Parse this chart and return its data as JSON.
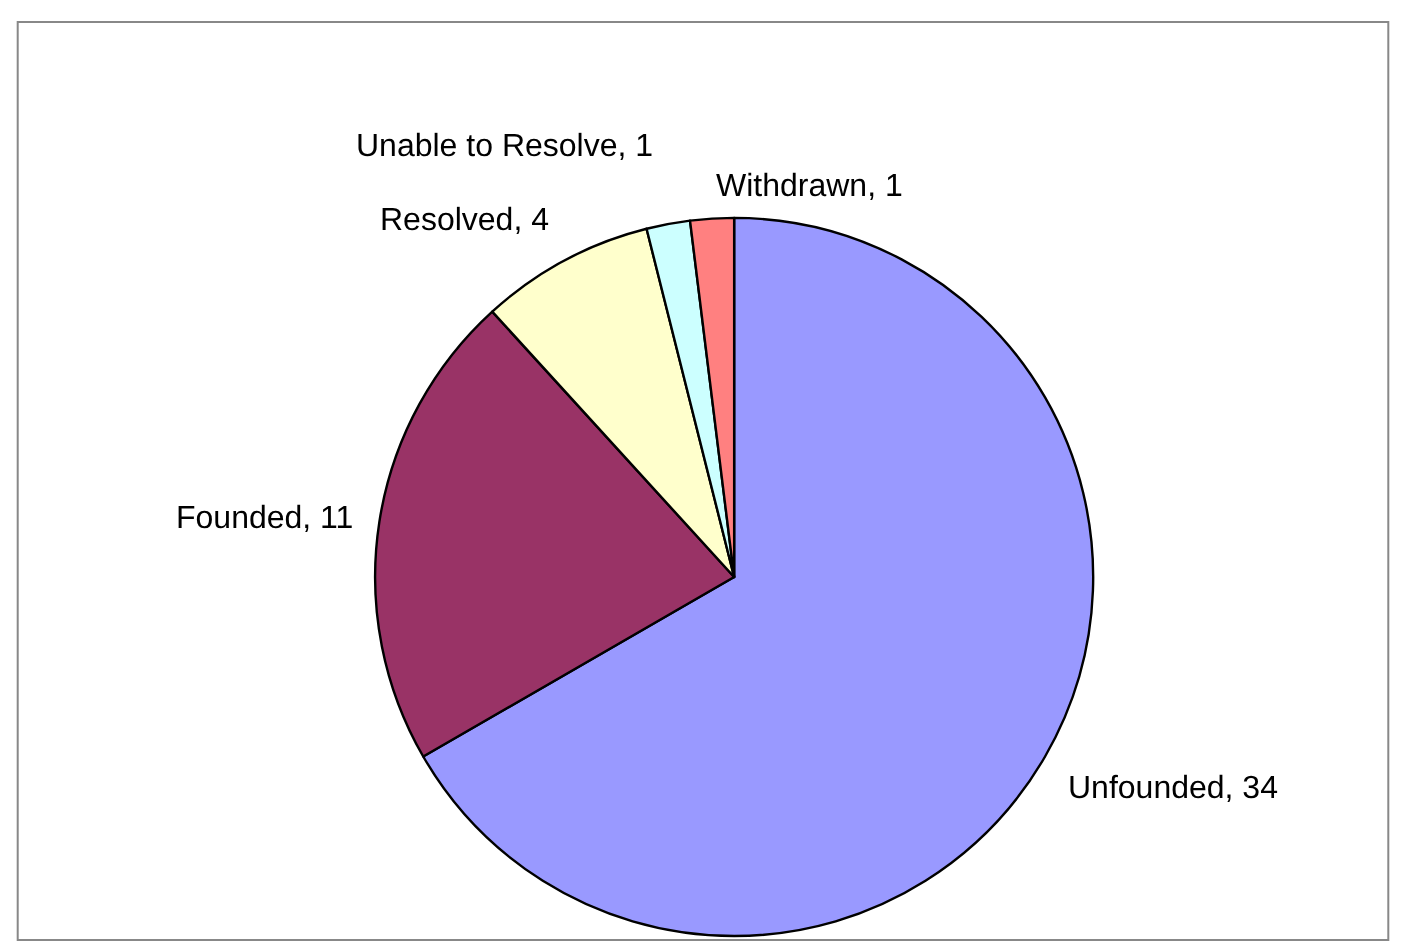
{
  "chart_data": {
    "type": "pie",
    "categories": [
      "Unfounded",
      "Founded",
      "Resolved",
      "Unable to Resolve",
      "Withdrawn"
    ],
    "values": [
      34,
      11,
      4,
      1,
      1
    ],
    "value_labels": [
      ", 34",
      ", 11",
      ", 4",
      ", 1",
      ", 1"
    ],
    "colors": [
      "#9999ff",
      "#993366",
      "#ffffcc",
      "#ccffff",
      "#ff8080"
    ],
    "legend": false
  }
}
